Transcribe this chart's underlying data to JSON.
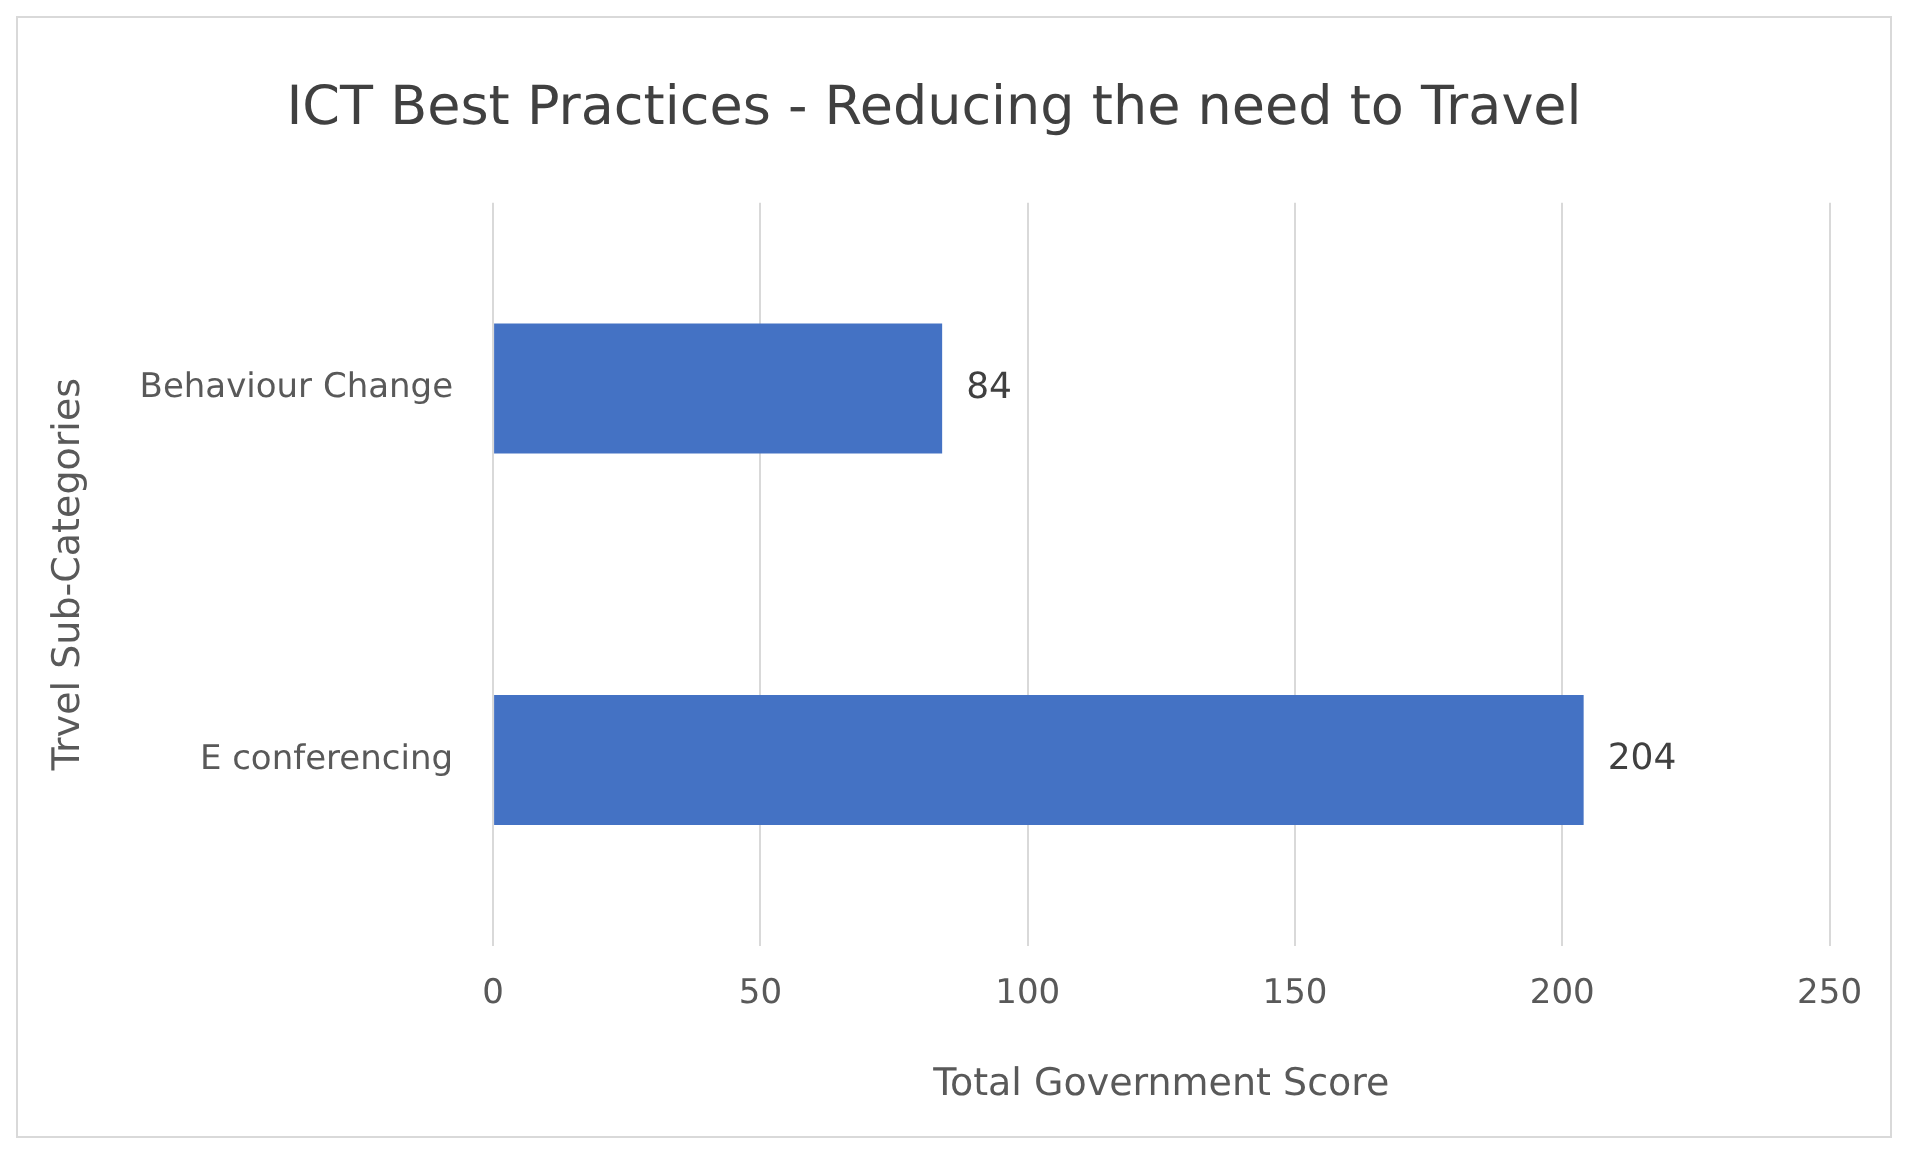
{
  "chart_data": {
    "type": "bar",
    "orientation": "horizontal",
    "title": "ICT Best Practices - Reducing the need to Travel",
    "xlabel": "Total Government Score",
    "ylabel": "Trvel Sub-Categories",
    "categories": [
      "Behaviour Change",
      "E conferencing"
    ],
    "values": [
      84,
      204
    ],
    "color": "#4472c4",
    "xlim": [
      0,
      250
    ],
    "xticks": [
      0,
      50,
      100,
      150,
      200,
      250
    ],
    "grid": "x",
    "data_labels": true,
    "legend": false
  }
}
